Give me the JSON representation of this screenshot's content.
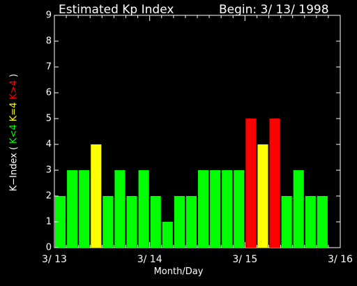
{
  "chart_data": {
    "type": "bar",
    "title": "Estimated Kp Index",
    "subtitle": "Begin: 3/ 13/ 1998",
    "xlabel": "Month/Day",
    "ylabel_parts": [
      {
        "text": "K−Index",
        "color": "#ffffff"
      },
      {
        "text": "(",
        "color": "#ffffff"
      },
      {
        "text": "K<4",
        "color": "#00ff00"
      },
      {
        "text": "K=4",
        "color": "#ffff00"
      },
      {
        "text": "K>4",
        "color": "#ff0000"
      },
      {
        "text": ")",
        "color": "#ffffff"
      }
    ],
    "ylim": [
      0,
      9
    ],
    "yticks": [
      "0",
      "1",
      "2",
      "3",
      "4",
      "5",
      "6",
      "7",
      "8",
      "9"
    ],
    "xlim_days": [
      0,
      3
    ],
    "xticks": [
      {
        "label": "3/ 13",
        "day": 0
      },
      {
        "label": "3/ 14",
        "day": 1
      },
      {
        "label": "3/ 15",
        "day": 2
      },
      {
        "label": "3/ 16",
        "day": 3
      }
    ],
    "bars_per_day": 8,
    "values": [
      2,
      3,
      3,
      4,
      2,
      3,
      2,
      3,
      2,
      1,
      2,
      2,
      3,
      3,
      3,
      3,
      5,
      4,
      5,
      2,
      3,
      2,
      2
    ],
    "colors": {
      "low": "#00ff00",
      "mid": "#ffff00",
      "high": "#ff0000",
      "axis": "#ffffff"
    }
  }
}
